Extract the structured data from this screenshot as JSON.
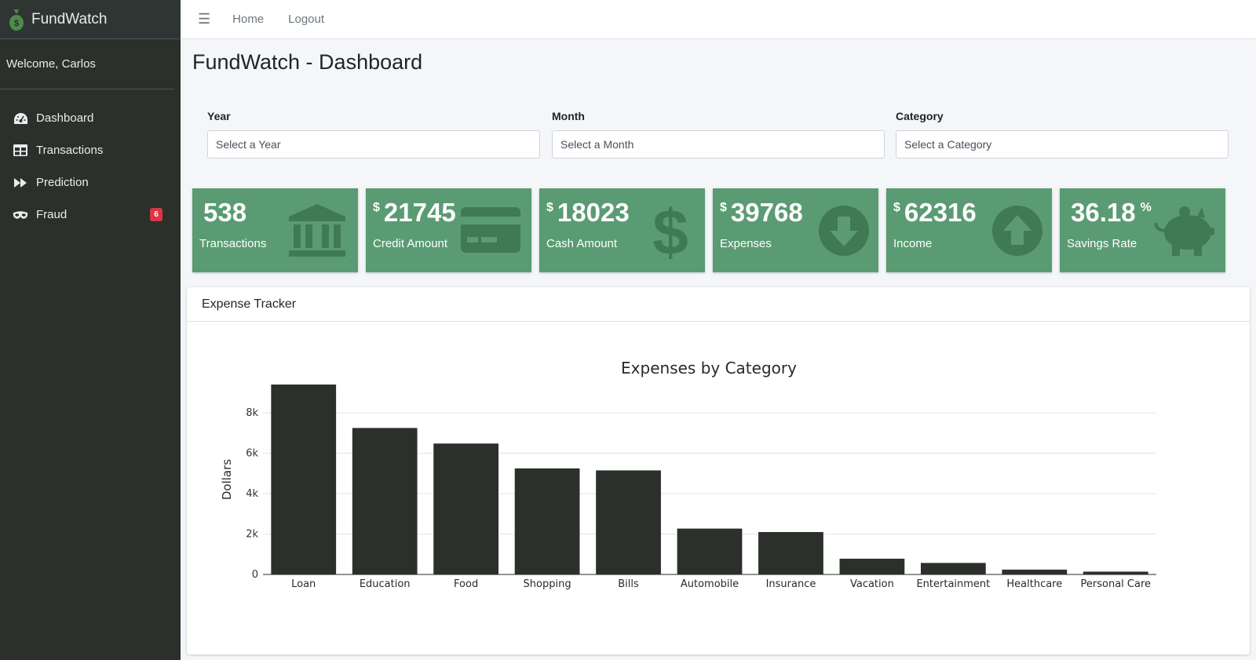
{
  "app": {
    "brand": "FundWatch",
    "welcome": "Welcome, Carlos"
  },
  "sidebar": {
    "items": [
      {
        "label": "Dashboard",
        "icon": "dashboard-icon"
      },
      {
        "label": "Transactions",
        "icon": "table-icon"
      },
      {
        "label": "Prediction",
        "icon": "fast-forward-icon"
      },
      {
        "label": "Fraud",
        "icon": "mask-icon",
        "badge": "6"
      }
    ]
  },
  "topbar": {
    "home": "Home",
    "logout": "Logout"
  },
  "page": {
    "title": "FundWatch - Dashboard"
  },
  "filters": {
    "year": {
      "label": "Year",
      "placeholder": "Select a Year"
    },
    "month": {
      "label": "Month",
      "placeholder": "Select a Month"
    },
    "category": {
      "label": "Category",
      "placeholder": "Select a Category"
    }
  },
  "stats": [
    {
      "prefix": "",
      "value": "538",
      "suffix": "",
      "label": "Transactions",
      "icon": "bank-icon"
    },
    {
      "prefix": "$",
      "value": "21745",
      "suffix": "",
      "label": "Credit Amount",
      "icon": "credit-card-icon"
    },
    {
      "prefix": "$",
      "value": "18023",
      "suffix": "",
      "label": "Cash Amount",
      "icon": "dollar-icon"
    },
    {
      "prefix": "$",
      "value": "39768",
      "suffix": "",
      "label": "Expenses",
      "icon": "arrow-down-circle-icon"
    },
    {
      "prefix": "$",
      "value": "62316",
      "suffix": "",
      "label": "Income",
      "icon": "arrow-up-circle-icon"
    },
    {
      "prefix": "",
      "value": "36.18",
      "suffix": "%",
      "label": "Savings Rate",
      "icon": "piggy-bank-icon"
    }
  ],
  "colors": {
    "stat_bg": "#5a9b73",
    "sidebar_bg": "#2b302b",
    "bar": "#2b302b",
    "badge": "#dc3545"
  },
  "card": {
    "title": "Expense Tracker"
  },
  "chart_data": {
    "type": "bar",
    "title": "Expenses by Category",
    "xlabel": "",
    "ylabel": "Dollars",
    "categories": [
      "Loan",
      "Education",
      "Food",
      "Shopping",
      "Bills",
      "Automobile",
      "Insurance",
      "Vacation",
      "Entertainment",
      "Healthcare",
      "Personal Care"
    ],
    "values": [
      9400,
      7250,
      6480,
      5250,
      5150,
      2270,
      2100,
      780,
      570,
      240,
      140
    ],
    "ylim": [
      0,
      9400
    ],
    "yticks": [
      0,
      2000,
      4000,
      6000,
      8000
    ],
    "ytick_labels": [
      "0",
      "2k",
      "4k",
      "6k",
      "8k"
    ],
    "grid": true
  }
}
